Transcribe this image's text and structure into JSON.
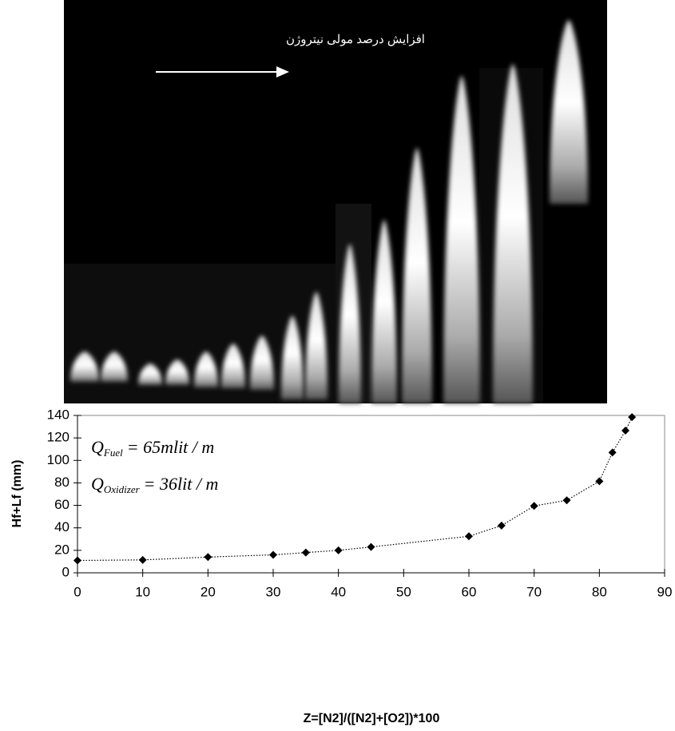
{
  "photo_caption": "افزایش درصد مولی نیتروژن",
  "chart_data": {
    "type": "scatter",
    "x_label": "Z=[N2]/([N2]+[O2])*100",
    "y_label": "Hf+Lf (mm)",
    "annotations": [
      {
        "symbol": "Q",
        "subscript": "Fuel",
        "text": "= 65mlit / m"
      },
      {
        "symbol": "Q",
        "subscript": "Oxidizer",
        "text": "= 36lit / m"
      }
    ],
    "series": [
      {
        "color": "#000000",
        "x": [
          0,
          10,
          20,
          30,
          35,
          40,
          45,
          60,
          65,
          70,
          75,
          80,
          82,
          84,
          85
        ],
        "values": [
          11,
          11.5,
          14,
          16,
          18,
          20,
          23,
          32.5,
          42,
          59.5,
          64.5,
          81.5,
          107,
          126.5,
          138.5
        ]
      }
    ],
    "xlim": [
      0,
      90
    ],
    "xticks": [
      0,
      10,
      20,
      30,
      40,
      50,
      60,
      70,
      80,
      90
    ],
    "ylim": [
      0,
      140
    ],
    "yticks": [
      0,
      20,
      40,
      60,
      80,
      100,
      120,
      140
    ],
    "line_style": "dotted"
  }
}
